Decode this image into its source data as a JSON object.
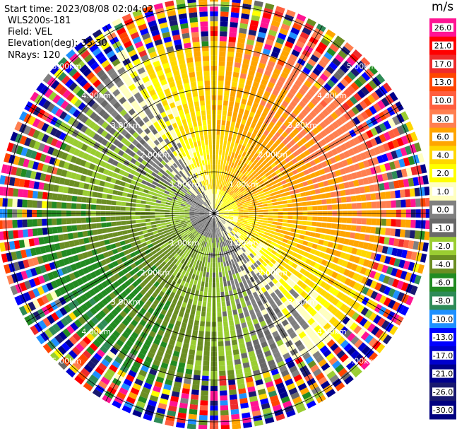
{
  "header": {
    "start_time": "Start time: 2023/08/08 02:04:02",
    "instrument": "WLS200s-181",
    "field": "Field: VEL",
    "elevation": "Elevation(deg): 35.30",
    "nrays": "NRays: 120"
  },
  "colorbar": {
    "unit": "m/s",
    "ticks": [
      "26.0",
      "21.0",
      "17.0",
      "13.0",
      "10.0",
      "8.0",
      "6.0",
      "4.0",
      "2.0",
      "1.0",
      "0.0",
      "-1.0",
      "-2.0",
      "-4.0",
      "-6.0",
      "-8.0",
      "-10.0",
      "-13.0",
      "-17.0",
      "-21.0",
      "-26.0",
      "-30.0"
    ],
    "colors": [
      "#ff1493",
      "#ff0000",
      "#ee2b2b",
      "#ff4500",
      "#ff5f3f",
      "#ff7f50",
      "#ffa500",
      "#ffd700",
      "#ffff00",
      "#ffffc0",
      "#808080",
      "#696969",
      "#9acd32",
      "#6b8e23",
      "#228b22",
      "#2e8b57",
      "#1e90ff",
      "#0000ff",
      "#0000cd",
      "#00008b",
      "#191970",
      "#000080"
    ]
  },
  "chart_data": {
    "type": "heatmap",
    "title": "",
    "field": "VEL",
    "unit": "m/s",
    "elevation_deg": 35.3,
    "n_rays": 120,
    "ring_labels": [
      "1.00km",
      "2.00km",
      "3.00km",
      "4.00km",
      "5.00km"
    ],
    "ring_ranges_km": [
      1,
      2,
      3,
      4,
      5
    ],
    "max_range_km": 5.2,
    "pattern": {
      "north_east_quadrant": "positive (orange / yellow, ~2 to 8 m/s)",
      "south_west_quadrant": "negative (green, ~-2 to -6 m/s)",
      "outer_ring": "noisy, all colors"
    }
  }
}
